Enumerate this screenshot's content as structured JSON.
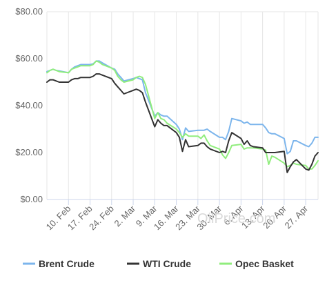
{
  "chart_data": {
    "type": "line",
    "title": "",
    "xlabel": "",
    "ylabel": "",
    "ylim": [
      0,
      80
    ],
    "yticks": [
      "$0.00",
      "$20.00",
      "$40.00",
      "$60.00",
      "$80.00"
    ],
    "ytick_values": [
      0,
      20,
      40,
      60,
      80
    ],
    "grid": "vertical",
    "legend_position": "bottom",
    "watermark": "OilPrice.com",
    "xticks": [
      "10. Feb",
      "17. Feb",
      "24. Feb",
      "2. Mar",
      "9. Mar",
      "16. Mar",
      "23. Mar",
      "30. Mar",
      "6. Apr",
      "13. Apr",
      "20. Apr",
      "27. Apr"
    ],
    "xtick_dates": [
      "2020-02-10",
      "2020-02-17",
      "2020-02-24",
      "2020-03-02",
      "2020-03-09",
      "2020-03-16",
      "2020-03-23",
      "2020-03-30",
      "2020-04-06",
      "2020-04-13",
      "2020-04-20",
      "2020-04-27"
    ],
    "x_start": "2020-02-03",
    "x_end": "2020-05-01",
    "series": [
      {
        "name": "Brent Crude",
        "color": "#7cb5ec",
        "points": [
          [
            "2020-02-03",
            54.5
          ],
          [
            "2020-02-04",
            55.0
          ],
          [
            "2020-02-05",
            55.5
          ],
          [
            "2020-02-06",
            55.0
          ],
          [
            "2020-02-07",
            54.8
          ],
          [
            "2020-02-10",
            54.0
          ],
          [
            "2020-02-11",
            55.5
          ],
          [
            "2020-02-12",
            56.5
          ],
          [
            "2020-02-13",
            57.0
          ],
          [
            "2020-02-14",
            57.5
          ],
          [
            "2020-02-17",
            57.5
          ],
          [
            "2020-02-18",
            57.8
          ],
          [
            "2020-02-19",
            59.0
          ],
          [
            "2020-02-20",
            59.0
          ],
          [
            "2020-02-21",
            58.2
          ],
          [
            "2020-02-24",
            56.0
          ],
          [
            "2020-02-25",
            55.5
          ],
          [
            "2020-02-26",
            53.5
          ],
          [
            "2020-02-27",
            52.0
          ],
          [
            "2020-02-28",
            50.5
          ],
          [
            "2020-03-02",
            51.5
          ],
          [
            "2020-03-03",
            52.0
          ],
          [
            "2020-03-04",
            51.5
          ],
          [
            "2020-03-05",
            51.0
          ],
          [
            "2020-03-06",
            45.5
          ],
          [
            "2020-03-09",
            35.5
          ],
          [
            "2020-03-10",
            37.0
          ],
          [
            "2020-03-11",
            36.0
          ],
          [
            "2020-03-12",
            35.5
          ],
          [
            "2020-03-13",
            35.5
          ],
          [
            "2020-03-16",
            32.0
          ],
          [
            "2020-03-17",
            30.0
          ],
          [
            "2020-03-18",
            25.5
          ],
          [
            "2020-03-19",
            30.5
          ],
          [
            "2020-03-20",
            29.0
          ],
          [
            "2020-03-23",
            29.5
          ],
          [
            "2020-03-24",
            29.5
          ],
          [
            "2020-03-25",
            29.5
          ],
          [
            "2020-03-26",
            30.0
          ],
          [
            "2020-03-27",
            29.0
          ],
          [
            "2020-03-30",
            26.5
          ],
          [
            "2020-03-31",
            26.5
          ],
          [
            "2020-04-01",
            25.5
          ],
          [
            "2020-04-02",
            29.0
          ],
          [
            "2020-04-03",
            34.5
          ],
          [
            "2020-04-06",
            33.5
          ],
          [
            "2020-04-07",
            32.5
          ],
          [
            "2020-04-08",
            33.0
          ],
          [
            "2020-04-09",
            32.0
          ],
          [
            "2020-04-10",
            32.0
          ],
          [
            "2020-04-13",
            32.0
          ],
          [
            "2020-04-14",
            30.5
          ],
          [
            "2020-04-15",
            28.5
          ],
          [
            "2020-04-16",
            28.0
          ],
          [
            "2020-04-17",
            28.0
          ],
          [
            "2020-04-20",
            26.0
          ],
          [
            "2020-04-21",
            19.5
          ],
          [
            "2020-04-22",
            20.5
          ],
          [
            "2020-04-23",
            25.0
          ],
          [
            "2020-04-24",
            25.0
          ],
          [
            "2020-04-27",
            23.0
          ],
          [
            "2020-04-28",
            22.5
          ],
          [
            "2020-04-29",
            24.0
          ],
          [
            "2020-04-30",
            26.5
          ],
          [
            "2020-05-01",
            26.5
          ]
        ]
      },
      {
        "name": "WTI Crude",
        "color": "#333333",
        "points": [
          [
            "2020-02-03",
            50.0
          ],
          [
            "2020-02-04",
            51.0
          ],
          [
            "2020-02-05",
            51.0
          ],
          [
            "2020-02-06",
            50.5
          ],
          [
            "2020-02-07",
            50.0
          ],
          [
            "2020-02-10",
            50.0
          ],
          [
            "2020-02-11",
            51.0
          ],
          [
            "2020-02-12",
            51.5
          ],
          [
            "2020-02-13",
            51.5
          ],
          [
            "2020-02-14",
            52.0
          ],
          [
            "2020-02-17",
            52.0
          ],
          [
            "2020-02-18",
            52.5
          ],
          [
            "2020-02-19",
            53.5
          ],
          [
            "2020-02-20",
            53.5
          ],
          [
            "2020-02-21",
            53.0
          ],
          [
            "2020-02-24",
            51.5
          ],
          [
            "2020-02-25",
            49.5
          ],
          [
            "2020-02-26",
            48.0
          ],
          [
            "2020-02-27",
            46.5
          ],
          [
            "2020-02-28",
            45.0
          ],
          [
            "2020-03-02",
            46.5
          ],
          [
            "2020-03-03",
            47.0
          ],
          [
            "2020-03-04",
            46.5
          ],
          [
            "2020-03-05",
            45.5
          ],
          [
            "2020-03-06",
            41.5
          ],
          [
            "2020-03-09",
            31.0
          ],
          [
            "2020-03-10",
            34.0
          ],
          [
            "2020-03-11",
            32.5
          ],
          [
            "2020-03-12",
            31.5
          ],
          [
            "2020-03-13",
            31.5
          ],
          [
            "2020-03-16",
            28.5
          ],
          [
            "2020-03-17",
            26.5
          ],
          [
            "2020-03-18",
            20.5
          ],
          [
            "2020-03-19",
            25.5
          ],
          [
            "2020-03-20",
            22.5
          ],
          [
            "2020-03-23",
            23.0
          ],
          [
            "2020-03-24",
            24.0
          ],
          [
            "2020-03-25",
            24.0
          ],
          [
            "2020-03-26",
            22.5
          ],
          [
            "2020-03-27",
            21.5
          ],
          [
            "2020-03-30",
            20.0
          ],
          [
            "2020-03-31",
            20.5
          ],
          [
            "2020-04-01",
            20.0
          ],
          [
            "2020-04-02",
            25.0
          ],
          [
            "2020-04-03",
            28.5
          ],
          [
            "2020-04-06",
            26.0
          ],
          [
            "2020-04-07",
            23.5
          ],
          [
            "2020-04-08",
            25.0
          ],
          [
            "2020-04-09",
            23.0
          ],
          [
            "2020-04-10",
            22.5
          ],
          [
            "2020-04-13",
            22.0
          ],
          [
            "2020-04-14",
            20.0
          ],
          [
            "2020-04-15",
            20.0
          ],
          [
            "2020-04-16",
            20.0
          ],
          [
            "2020-04-17",
            20.0
          ],
          [
            "2020-04-20",
            20.5
          ],
          [
            "2020-04-21",
            11.5
          ],
          [
            "2020-04-22",
            14.0
          ],
          [
            "2020-04-23",
            16.0
          ],
          [
            "2020-04-24",
            17.0
          ],
          [
            "2020-04-27",
            13.0
          ],
          [
            "2020-04-28",
            12.5
          ],
          [
            "2020-04-29",
            15.0
          ],
          [
            "2020-04-30",
            18.5
          ],
          [
            "2020-05-01",
            20.0
          ]
        ]
      },
      {
        "name": "Opec Basket",
        "color": "#90ed7d",
        "points": [
          [
            "2020-02-03",
            54.0
          ],
          [
            "2020-02-04",
            55.0
          ],
          [
            "2020-02-05",
            55.5
          ],
          [
            "2020-02-06",
            55.0
          ],
          [
            "2020-02-07",
            54.5
          ],
          [
            "2020-02-10",
            54.0
          ],
          [
            "2020-02-11",
            55.5
          ],
          [
            "2020-02-12",
            56.0
          ],
          [
            "2020-02-13",
            56.5
          ],
          [
            "2020-02-14",
            57.0
          ],
          [
            "2020-02-17",
            57.0
          ],
          [
            "2020-02-18",
            57.5
          ],
          [
            "2020-02-19",
            59.0
          ],
          [
            "2020-02-20",
            58.5
          ],
          [
            "2020-02-21",
            57.5
          ],
          [
            "2020-02-24",
            56.0
          ],
          [
            "2020-02-25",
            55.0
          ],
          [
            "2020-02-26",
            52.5
          ],
          [
            "2020-02-27",
            51.0
          ],
          [
            "2020-02-28",
            50.0
          ],
          [
            "2020-03-02",
            51.0
          ],
          [
            "2020-03-03",
            52.0
          ],
          [
            "2020-03-04",
            52.5
          ],
          [
            "2020-03-05",
            52.0
          ],
          [
            "2020-03-06",
            49.0
          ],
          [
            "2020-03-09",
            34.5
          ],
          [
            "2020-03-10",
            37.0
          ],
          [
            "2020-03-11",
            34.5
          ],
          [
            "2020-03-12",
            34.0
          ],
          [
            "2020-03-13",
            32.5
          ],
          [
            "2020-03-16",
            30.0
          ],
          [
            "2020-03-17",
            28.5
          ],
          [
            "2020-03-18",
            26.5
          ],
          [
            "2020-03-19",
            28.0
          ],
          [
            "2020-03-20",
            27.0
          ],
          [
            "2020-03-23",
            27.0
          ],
          [
            "2020-03-24",
            26.0
          ],
          [
            "2020-03-25",
            27.5
          ],
          [
            "2020-03-26",
            25.0
          ],
          [
            "2020-03-27",
            23.0
          ],
          [
            "2020-03-30",
            21.5
          ],
          [
            "2020-03-31",
            19.0
          ],
          [
            "2020-04-01",
            17.5
          ],
          [
            "2020-04-02",
            20.0
          ],
          [
            "2020-04-03",
            23.0
          ],
          [
            "2020-04-06",
            23.5
          ],
          [
            "2020-04-07",
            21.5
          ],
          [
            "2020-04-08",
            22.0
          ],
          [
            "2020-04-09",
            22.0
          ],
          [
            "2020-04-10",
            22.0
          ],
          [
            "2020-04-13",
            21.5
          ],
          [
            "2020-04-14",
            21.0
          ],
          [
            "2020-04-15",
            15.0
          ],
          [
            "2020-04-16",
            18.5
          ],
          [
            "2020-04-17",
            18.0
          ],
          [
            "2020-04-20",
            15.5
          ],
          [
            "2020-04-21",
            14.0
          ],
          [
            "2020-04-22",
            14.5
          ],
          [
            "2020-04-23",
            15.5
          ],
          [
            "2020-04-24",
            15.0
          ],
          [
            "2020-04-27",
            14.5
          ],
          [
            "2020-04-28",
            13.0
          ],
          [
            "2020-04-29",
            13.0
          ],
          [
            "2020-04-30",
            14.5
          ],
          [
            "2020-05-01",
            16.5
          ]
        ]
      }
    ]
  }
}
